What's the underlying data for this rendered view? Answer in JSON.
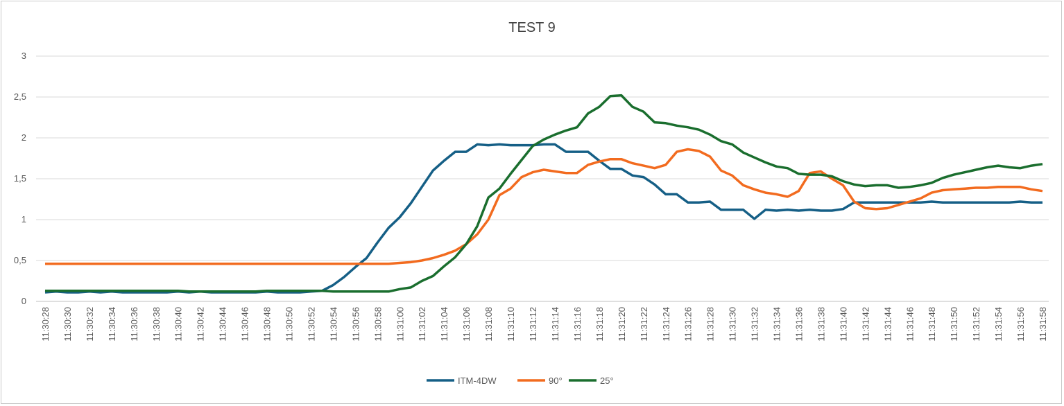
{
  "chart_data": {
    "type": "line",
    "title": "TEST 9",
    "xlabel": "",
    "ylabel": "",
    "ylim": [
      0,
      3
    ],
    "yticks": [
      "0",
      "0,5",
      "1",
      "1,5",
      "2",
      "2,5",
      "3"
    ],
    "grid": true,
    "legend_position": "bottom",
    "x_start": "11:30:28",
    "x_end": "11:31:58",
    "x_step_seconds": 1,
    "x_label_every_seconds": 2,
    "series": [
      {
        "name": "ITM-4DW",
        "color": "#155f86",
        "values": [
          0.11,
          0.12,
          0.11,
          0.11,
          0.12,
          0.11,
          0.12,
          0.11,
          0.11,
          0.11,
          0.11,
          0.11,
          0.12,
          0.11,
          0.12,
          0.11,
          0.11,
          0.11,
          0.11,
          0.11,
          0.12,
          0.11,
          0.11,
          0.11,
          0.12,
          0.13,
          0.2,
          0.3,
          0.42,
          0.53,
          0.72,
          0.9,
          1.03,
          1.2,
          1.4,
          1.6,
          1.72,
          1.83,
          1.83,
          1.92,
          1.91,
          1.92,
          1.91,
          1.91,
          1.91,
          1.92,
          1.92,
          1.83,
          1.83,
          1.83,
          1.72,
          1.62,
          1.62,
          1.54,
          1.52,
          1.43,
          1.31,
          1.31,
          1.21,
          1.21,
          1.22,
          1.12,
          1.12,
          1.12,
          1.01,
          1.12,
          1.11,
          1.12,
          1.11,
          1.12,
          1.11,
          1.11,
          1.13,
          1.21,
          1.21,
          1.21,
          1.21,
          1.21,
          1.21,
          1.21,
          1.22,
          1.21,
          1.21,
          1.21,
          1.21,
          1.21,
          1.21,
          1.21,
          1.22,
          1.21,
          1.21
        ]
      },
      {
        "name": "90°",
        "color": "#f26b1f",
        "values": [
          0.46,
          0.46,
          0.46,
          0.46,
          0.46,
          0.46,
          0.46,
          0.46,
          0.46,
          0.46,
          0.46,
          0.46,
          0.46,
          0.46,
          0.46,
          0.46,
          0.46,
          0.46,
          0.46,
          0.46,
          0.46,
          0.46,
          0.46,
          0.46,
          0.46,
          0.46,
          0.46,
          0.46,
          0.46,
          0.46,
          0.46,
          0.46,
          0.47,
          0.48,
          0.5,
          0.53,
          0.57,
          0.62,
          0.7,
          0.82,
          1.0,
          1.3,
          1.38,
          1.52,
          1.58,
          1.61,
          1.59,
          1.57,
          1.57,
          1.67,
          1.71,
          1.74,
          1.74,
          1.69,
          1.66,
          1.63,
          1.67,
          1.83,
          1.86,
          1.84,
          1.77,
          1.6,
          1.54,
          1.42,
          1.37,
          1.33,
          1.31,
          1.28,
          1.35,
          1.57,
          1.59,
          1.5,
          1.42,
          1.22,
          1.14,
          1.13,
          1.14,
          1.18,
          1.22,
          1.26,
          1.33,
          1.36,
          1.37,
          1.38,
          1.39,
          1.39,
          1.4,
          1.4,
          1.4,
          1.37,
          1.35
        ]
      },
      {
        "name": "25°",
        "color": "#1a6e2e",
        "values": [
          0.13,
          0.13,
          0.13,
          0.13,
          0.13,
          0.13,
          0.13,
          0.13,
          0.13,
          0.13,
          0.13,
          0.13,
          0.13,
          0.12,
          0.12,
          0.12,
          0.12,
          0.12,
          0.12,
          0.12,
          0.13,
          0.13,
          0.13,
          0.13,
          0.13,
          0.13,
          0.12,
          0.12,
          0.12,
          0.12,
          0.12,
          0.12,
          0.15,
          0.17,
          0.25,
          0.31,
          0.43,
          0.54,
          0.7,
          0.92,
          1.27,
          1.38,
          1.56,
          1.73,
          1.9,
          1.98,
          2.04,
          2.09,
          2.13,
          2.3,
          2.38,
          2.51,
          2.52,
          2.38,
          2.32,
          2.19,
          2.18,
          2.15,
          2.13,
          2.1,
          2.04,
          1.96,
          1.92,
          1.82,
          1.76,
          1.7,
          1.65,
          1.63,
          1.56,
          1.55,
          1.55,
          1.53,
          1.47,
          1.43,
          1.41,
          1.42,
          1.42,
          1.39,
          1.4,
          1.42,
          1.45,
          1.51,
          1.55,
          1.58,
          1.61,
          1.64,
          1.66,
          1.64,
          1.63,
          1.66,
          1.68
        ]
      }
    ]
  }
}
